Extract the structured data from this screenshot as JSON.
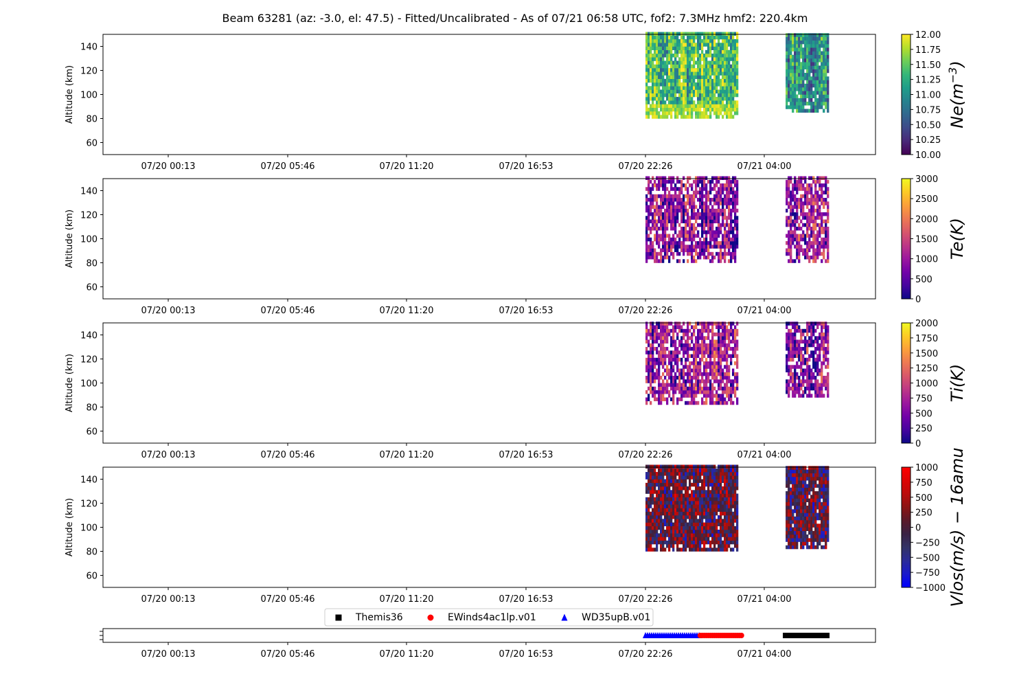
{
  "title": "Beam 63281 (az: -3.0, el: 47.5) - Fitted/Uncalibrated - As of 07/21 06:58 UTC, fof2: 7.3MHz  hmf2: 220.4km",
  "chart_data": [
    {
      "type": "heatmap",
      "name": "ne",
      "ylabel": "Altitude (km)",
      "ylim": [
        50,
        150
      ],
      "yticks": [
        60,
        80,
        100,
        120,
        140
      ],
      "xticks": [
        "07/20 00:13",
        "07/20 05:46",
        "07/20 11:20",
        "07/20 16:53",
        "07/20 22:26",
        "07/21 04:00"
      ],
      "colorbar": {
        "label": "Ne(m^-3)",
        "label_html": "Ne(m<tspan baseline-shift=\"super\" font-size=\"16\">−3</tspan>)",
        "range": [
          10.0,
          12.0
        ],
        "ticks": [
          "10.00",
          "10.25",
          "10.50",
          "10.75",
          "11.00",
          "11.25",
          "11.50",
          "11.75",
          "12.00"
        ],
        "colormap": "viridis"
      },
      "blocks": [
        {
          "t_start": "07/20 22:26",
          "t_end": "07/21 02:45",
          "alt_min": 80,
          "alt_max": 150,
          "typical": 11.4
        },
        {
          "t_start": "07/21 05:00",
          "t_end": "07/21 07:00",
          "alt_min": 85,
          "alt_max": 150,
          "typical": 11.0
        }
      ]
    },
    {
      "type": "heatmap",
      "name": "te",
      "ylabel": "Altitude (km)",
      "ylim": [
        50,
        150
      ],
      "yticks": [
        60,
        80,
        100,
        120,
        140
      ],
      "xticks": [
        "07/20 00:13",
        "07/20 05:46",
        "07/20 11:20",
        "07/20 16:53",
        "07/20 22:26",
        "07/21 04:00"
      ],
      "colorbar": {
        "label": "Te(K)",
        "label_html": "Te(K)",
        "range": [
          0,
          3000
        ],
        "ticks": [
          "0",
          "500",
          "1000",
          "1500",
          "2000",
          "2500",
          "3000"
        ],
        "colormap": "plasma"
      },
      "blocks": [
        {
          "t_start": "07/20 22:26",
          "t_end": "07/21 02:45",
          "alt_min": 80,
          "alt_max": 150,
          "typical": 900
        },
        {
          "t_start": "07/21 05:00",
          "t_end": "07/21 07:00",
          "alt_min": 80,
          "alt_max": 150,
          "typical": 1000
        }
      ]
    },
    {
      "type": "heatmap",
      "name": "ti",
      "ylabel": "Altitude (km)",
      "ylim": [
        50,
        150
      ],
      "yticks": [
        60,
        80,
        100,
        120,
        140
      ],
      "xticks": [
        "07/20 00:13",
        "07/20 05:46",
        "07/20 11:20",
        "07/20 16:53",
        "07/20 22:26",
        "07/21 04:00"
      ],
      "colorbar": {
        "label": "Ti(K)",
        "label_html": "Ti(K)",
        "range": [
          0,
          2000
        ],
        "ticks": [
          "0",
          "250",
          "500",
          "750",
          "1000",
          "1250",
          "1500",
          "1750",
          "2000"
        ],
        "colormap": "plasma"
      },
      "blocks": [
        {
          "t_start": "07/20 22:26",
          "t_end": "07/21 02:45",
          "alt_min": 82,
          "alt_max": 150,
          "typical": 650
        },
        {
          "t_start": "07/21 05:00",
          "t_end": "07/21 07:00",
          "alt_min": 88,
          "alt_max": 150,
          "typical": 550
        }
      ]
    },
    {
      "type": "heatmap",
      "name": "vlos",
      "ylabel": "Altitude (km)",
      "ylim": [
        50,
        150
      ],
      "yticks": [
        60,
        80,
        100,
        120,
        140
      ],
      "xticks": [
        "07/20 00:13",
        "07/20 05:46",
        "07/20 11:20",
        "07/20 16:53",
        "07/20 22:26",
        "07/21 04:00"
      ],
      "colorbar": {
        "label": "Vlos(m/s) - 16amu",
        "label_html": "Vlos(m/s) − 16amu",
        "range": [
          -1000,
          1000
        ],
        "ticks": [
          "−1000",
          "−750",
          "−500",
          "−250",
          "0",
          "250",
          "500",
          "750",
          "1000"
        ],
        "colormap": "bwr-dark"
      },
      "blocks": [
        {
          "t_start": "07/20 22:26",
          "t_end": "07/21 02:45",
          "alt_min": 80,
          "alt_max": 150,
          "typical": 0
        },
        {
          "t_start": "07/21 05:00",
          "t_end": "07/21 07:00",
          "alt_min": 82,
          "alt_max": 150,
          "typical": 0
        }
      ]
    },
    {
      "type": "scatter",
      "name": "modes",
      "xticks": [
        "07/20 00:13",
        "07/20 05:46",
        "07/20 11:20",
        "07/20 16:53",
        "07/20 22:26",
        "07/21 04:00"
      ],
      "legend": [
        {
          "label": "Themis36",
          "marker": "square",
          "color": "#000000"
        },
        {
          "label": "EWinds4ac1lp.v01",
          "marker": "circle",
          "color": "#ff0000"
        },
        {
          "label": "WD35upB.v01",
          "marker": "triangle",
          "color": "#0000ff"
        }
      ],
      "runs": [
        {
          "label": "WD35upB.v01",
          "t_start": "07/20 22:26",
          "t_end": "07/21 01:00"
        },
        {
          "label": "EWinds4ac1lp.v01",
          "t_start": "07/21 01:00",
          "t_end": "07/21 03:00"
        },
        {
          "label": "Themis36",
          "t_start": "07/21 05:00",
          "t_end": "07/21 07:00"
        }
      ]
    }
  ]
}
